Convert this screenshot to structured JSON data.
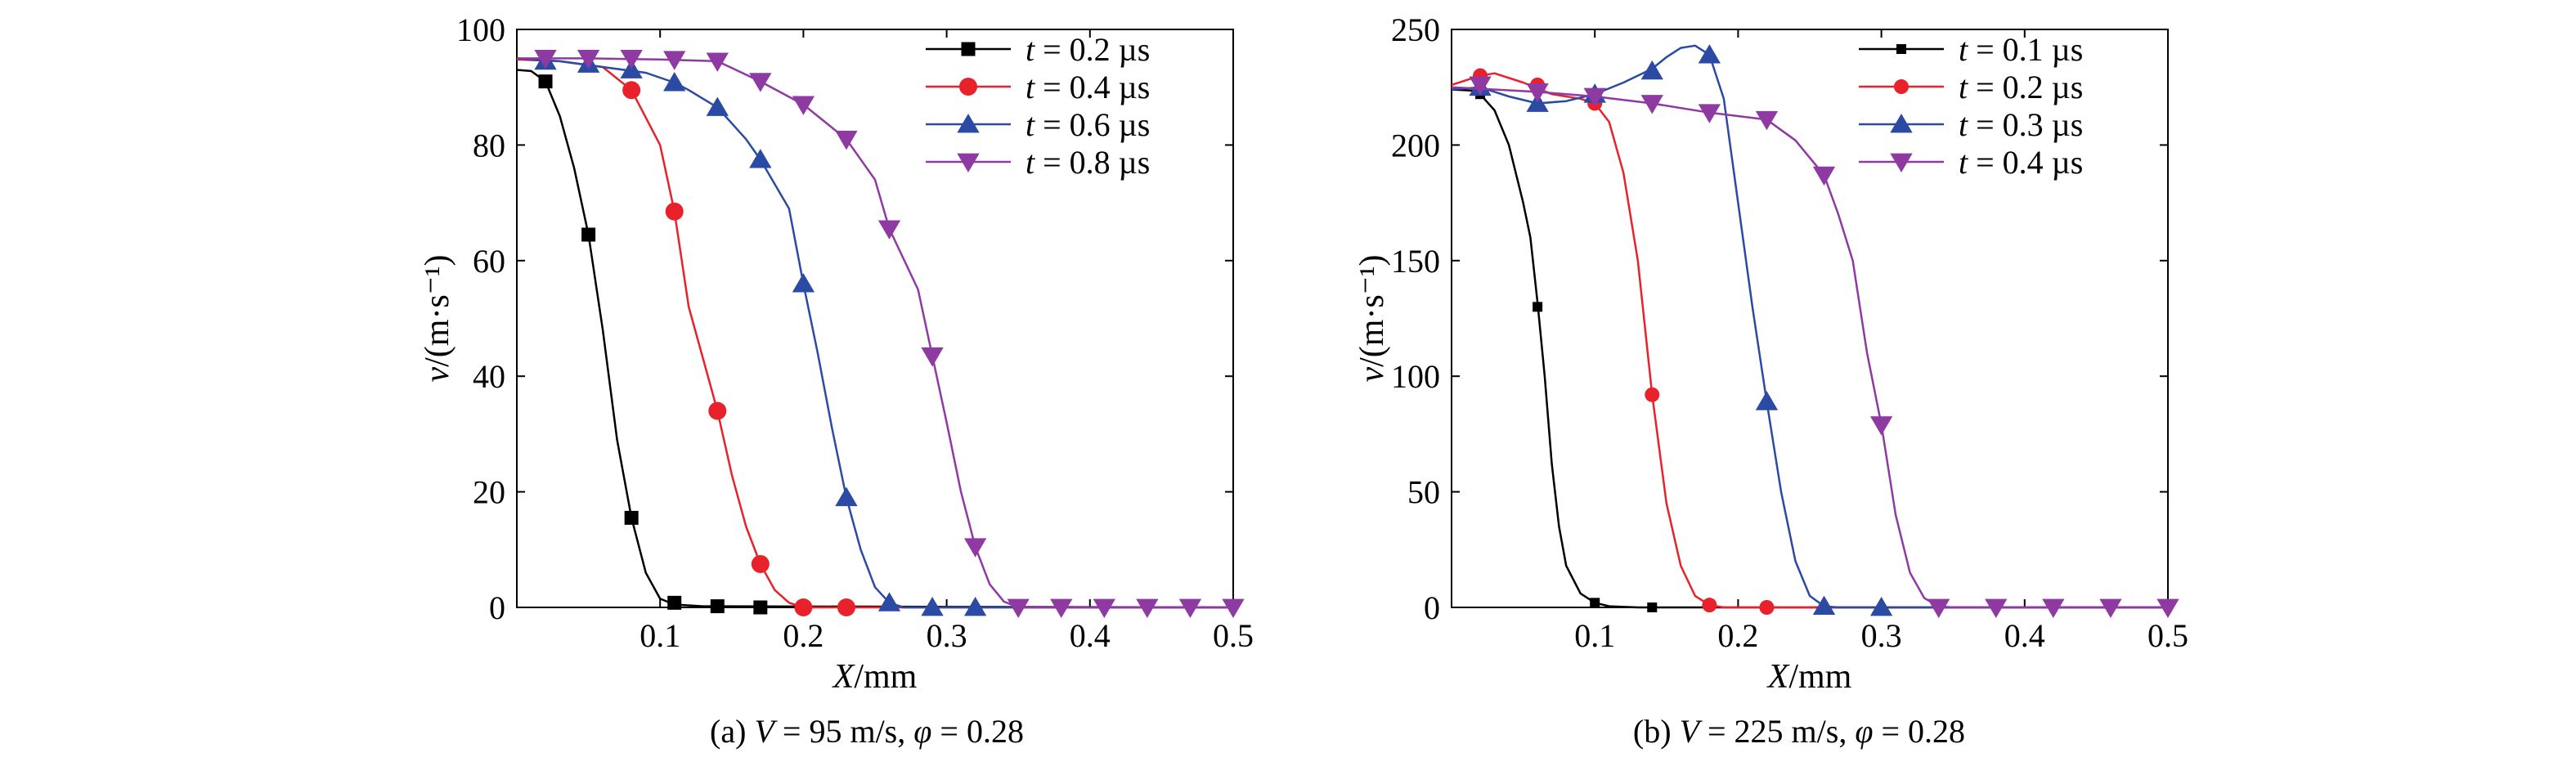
{
  "figure": {
    "panels": [
      {
        "label": "(a)",
        "caption_prefix": "(a) ",
        "caption_var": "V",
        "caption_mid": " = 95 m/s, ",
        "caption_phi": "φ",
        "caption_end": " = 0.28"
      },
      {
        "label": "(b)",
        "caption_prefix": "(b) ",
        "caption_var": "V",
        "caption_mid": " = 225 m/s, ",
        "caption_phi": "φ",
        "caption_end": " = 0.28"
      }
    ]
  },
  "chart_data": [
    {
      "type": "line",
      "xlabel": "X/mm",
      "ylabel": "v/(m·s⁻¹)",
      "xlim": [
        0,
        0.5
      ],
      "ylim": [
        0,
        100
      ],
      "xticks": [
        0.1,
        0.2,
        0.3,
        0.4,
        0.5
      ],
      "yticks": [
        0,
        20,
        40,
        60,
        80,
        100
      ],
      "legend_position": "top-right",
      "grid": false,
      "series": [
        {
          "name": "t = 0.2 µs",
          "t_value": "0.2",
          "color": "#000000",
          "marker": "square",
          "curve": [
            [
              0,
              93
            ],
            [
              0.01,
              92.8
            ],
            [
              0.02,
              91
            ],
            [
              0.03,
              85
            ],
            [
              0.04,
              76
            ],
            [
              0.05,
              64.5
            ],
            [
              0.06,
              48
            ],
            [
              0.07,
              29
            ],
            [
              0.08,
              15.5
            ],
            [
              0.09,
              6
            ],
            [
              0.1,
              1.5
            ],
            [
              0.11,
              0.5
            ],
            [
              0.13,
              0.2
            ],
            [
              0.5,
              0
            ]
          ],
          "markers": [
            [
              0.02,
              91
            ],
            [
              0.05,
              64.5
            ],
            [
              0.08,
              15.5
            ],
            [
              0.11,
              0.8
            ],
            [
              0.14,
              0.2
            ],
            [
              0.17,
              0
            ]
          ]
        },
        {
          "name": "t = 0.4 µs",
          "t_value": "0.4",
          "color": "#e8212b",
          "marker": "circle",
          "curve": [
            [
              0,
              94.8
            ],
            [
              0.03,
              94.5
            ],
            [
              0.06,
              93.5
            ],
            [
              0.08,
              89.5
            ],
            [
              0.1,
              80
            ],
            [
              0.11,
              68.5
            ],
            [
              0.12,
              52
            ],
            [
              0.13,
              43
            ],
            [
              0.14,
              34
            ],
            [
              0.15,
              23
            ],
            [
              0.16,
              14
            ],
            [
              0.17,
              7.5
            ],
            [
              0.18,
              3
            ],
            [
              0.19,
              0.8
            ],
            [
              0.2,
              0
            ],
            [
              0.5,
              0
            ]
          ],
          "markers": [
            [
              0.08,
              89.5
            ],
            [
              0.11,
              68.5
            ],
            [
              0.14,
              34
            ],
            [
              0.17,
              7.5
            ],
            [
              0.2,
              0
            ],
            [
              0.23,
              0
            ]
          ]
        },
        {
          "name": "t = 0.6 µs",
          "t_value": "0.6",
          "color": "#2a4aa4",
          "marker": "triangle-up",
          "curve": [
            [
              0,
              95
            ],
            [
              0.03,
              94.5
            ],
            [
              0.06,
              93.5
            ],
            [
              0.09,
              92.5
            ],
            [
              0.11,
              90.8
            ],
            [
              0.12,
              89.5
            ],
            [
              0.14,
              86.5
            ],
            [
              0.16,
              81
            ],
            [
              0.17,
              77.5
            ],
            [
              0.19,
              69
            ],
            [
              0.2,
              56
            ],
            [
              0.21,
              44
            ],
            [
              0.22,
              31
            ],
            [
              0.23,
              19
            ],
            [
              0.24,
              10
            ],
            [
              0.25,
              3.5
            ],
            [
              0.26,
              0.8
            ],
            [
              0.27,
              0
            ],
            [
              0.5,
              0
            ]
          ],
          "markers": [
            [
              0.02,
              94.5
            ],
            [
              0.05,
              94
            ],
            [
              0.08,
              93
            ],
            [
              0.11,
              90.8
            ],
            [
              0.14,
              86.5
            ],
            [
              0.17,
              77.5
            ],
            [
              0.2,
              56
            ],
            [
              0.23,
              19
            ],
            [
              0.26,
              0.8
            ],
            [
              0.29,
              0
            ],
            [
              0.32,
              0
            ]
          ]
        },
        {
          "name": "t = 0.8 µs",
          "t_value": "0.8",
          "color": "#8f39a3",
          "marker": "triangle-down",
          "curve": [
            [
              0,
              95
            ],
            [
              0.05,
              95
            ],
            [
              0.1,
              94.8
            ],
            [
              0.14,
              94.5
            ],
            [
              0.17,
              91
            ],
            [
              0.2,
              87
            ],
            [
              0.23,
              81
            ],
            [
              0.25,
              74
            ],
            [
              0.26,
              65.5
            ],
            [
              0.28,
              55
            ],
            [
              0.29,
              43.5
            ],
            [
              0.3,
              32
            ],
            [
              0.31,
              20
            ],
            [
              0.32,
              10.5
            ],
            [
              0.33,
              4
            ],
            [
              0.34,
              1
            ],
            [
              0.35,
              0
            ],
            [
              0.5,
              0
            ]
          ],
          "markers": [
            [
              0.02,
              95
            ],
            [
              0.05,
              95
            ],
            [
              0.08,
              95
            ],
            [
              0.11,
              94.8
            ],
            [
              0.14,
              94.5
            ],
            [
              0.17,
              91
            ],
            [
              0.2,
              87
            ],
            [
              0.23,
              81
            ],
            [
              0.26,
              65.5
            ],
            [
              0.29,
              43.5
            ],
            [
              0.32,
              10.5
            ],
            [
              0.35,
              0
            ],
            [
              0.38,
              0
            ],
            [
              0.41,
              0
            ],
            [
              0.44,
              0
            ],
            [
              0.47,
              0
            ],
            [
              0.5,
              0
            ]
          ]
        }
      ]
    },
    {
      "type": "line",
      "xlabel": "X/mm",
      "ylabel": "v/(m·s⁻¹)",
      "xlim": [
        0,
        0.5
      ],
      "ylim": [
        0,
        250
      ],
      "xticks": [
        0.1,
        0.2,
        0.3,
        0.4,
        0.5
      ],
      "yticks": [
        0,
        50,
        100,
        150,
        200,
        250
      ],
      "legend_position": "top-right",
      "grid": false,
      "series": [
        {
          "name": "t = 0.1 µs",
          "t_value": "0.1",
          "color": "#000000",
          "marker": "square-small",
          "curve": [
            [
              0,
              224
            ],
            [
              0.015,
              223.5
            ],
            [
              0.02,
              222
            ],
            [
              0.03,
              215
            ],
            [
              0.04,
              200
            ],
            [
              0.05,
              175
            ],
            [
              0.055,
              160
            ],
            [
              0.06,
              132
            ],
            [
              0.065,
              100
            ],
            [
              0.07,
              62
            ],
            [
              0.075,
              35
            ],
            [
              0.08,
              18
            ],
            [
              0.09,
              6
            ],
            [
              0.1,
              2
            ],
            [
              0.11,
              0.5
            ],
            [
              0.13,
              0
            ],
            [
              0.5,
              0
            ]
          ],
          "markers": [
            [
              0.02,
              222
            ],
            [
              0.06,
              130
            ],
            [
              0.1,
              2
            ],
            [
              0.14,
              0
            ]
          ]
        },
        {
          "name": "t = 0.2 µs",
          "t_value": "0.2",
          "color": "#e8212b",
          "marker": "circle-small",
          "curve": [
            [
              0,
              226
            ],
            [
              0.02,
              230
            ],
            [
              0.03,
              231
            ],
            [
              0.05,
              227
            ],
            [
              0.07,
              222
            ],
            [
              0.09,
              220
            ],
            [
              0.1,
              218
            ],
            [
              0.11,
              210
            ],
            [
              0.12,
              188
            ],
            [
              0.13,
              150
            ],
            [
              0.14,
              92
            ],
            [
              0.15,
              45
            ],
            [
              0.16,
              18
            ],
            [
              0.17,
              5
            ],
            [
              0.18,
              1
            ],
            [
              0.19,
              0
            ],
            [
              0.5,
              0
            ]
          ],
          "markers": [
            [
              0.02,
              230
            ],
            [
              0.06,
              226
            ],
            [
              0.1,
              218
            ],
            [
              0.14,
              92
            ],
            [
              0.18,
              1
            ],
            [
              0.22,
              0
            ]
          ]
        },
        {
          "name": "t = 0.3 µs",
          "t_value": "0.3",
          "color": "#2a4aa4",
          "marker": "triangle-up",
          "curve": [
            [
              0,
              224
            ],
            [
              0.02,
              225
            ],
            [
              0.04,
              221
            ],
            [
              0.06,
              218
            ],
            [
              0.08,
              219
            ],
            [
              0.1,
              222
            ],
            [
              0.12,
              227
            ],
            [
              0.14,
              233
            ],
            [
              0.15,
              238
            ],
            [
              0.16,
              242
            ],
            [
              0.17,
              243
            ],
            [
              0.18,
              239
            ],
            [
              0.19,
              220
            ],
            [
              0.2,
              175
            ],
            [
              0.21,
              130
            ],
            [
              0.22,
              89
            ],
            [
              0.23,
              50
            ],
            [
              0.24,
              20
            ],
            [
              0.25,
              5
            ],
            [
              0.26,
              0.5
            ],
            [
              0.27,
              0
            ],
            [
              0.5,
              0
            ]
          ],
          "markers": [
            [
              0.02,
              225
            ],
            [
              0.06,
              218
            ],
            [
              0.1,
              222
            ],
            [
              0.14,
              232
            ],
            [
              0.18,
              239
            ],
            [
              0.22,
              89
            ],
            [
              0.26,
              0.5
            ],
            [
              0.3,
              0
            ]
          ]
        },
        {
          "name": "t = 0.4 µs",
          "t_value": "0.4",
          "color": "#8f39a3",
          "marker": "triangle-down",
          "curve": [
            [
              0,
              225
            ],
            [
              0.06,
              223
            ],
            [
              0.1,
              221
            ],
            [
              0.14,
              218
            ],
            [
              0.18,
              214
            ],
            [
              0.22,
              211
            ],
            [
              0.24,
              202
            ],
            [
              0.26,
              187
            ],
            [
              0.27,
              170
            ],
            [
              0.28,
              150
            ],
            [
              0.29,
              110
            ],
            [
              0.3,
              79
            ],
            [
              0.31,
              40
            ],
            [
              0.32,
              15
            ],
            [
              0.33,
              4
            ],
            [
              0.34,
              0.5
            ],
            [
              0.35,
              0
            ],
            [
              0.5,
              0
            ]
          ],
          "markers": [
            [
              0.02,
              226
            ],
            [
              0.06,
              223
            ],
            [
              0.1,
              221
            ],
            [
              0.14,
              218
            ],
            [
              0.18,
              214
            ],
            [
              0.22,
              211
            ],
            [
              0.26,
              187
            ],
            [
              0.3,
              79
            ],
            [
              0.34,
              0
            ],
            [
              0.38,
              0
            ],
            [
              0.42,
              0
            ],
            [
              0.46,
              0
            ],
            [
              0.5,
              0
            ]
          ]
        }
      ]
    }
  ]
}
